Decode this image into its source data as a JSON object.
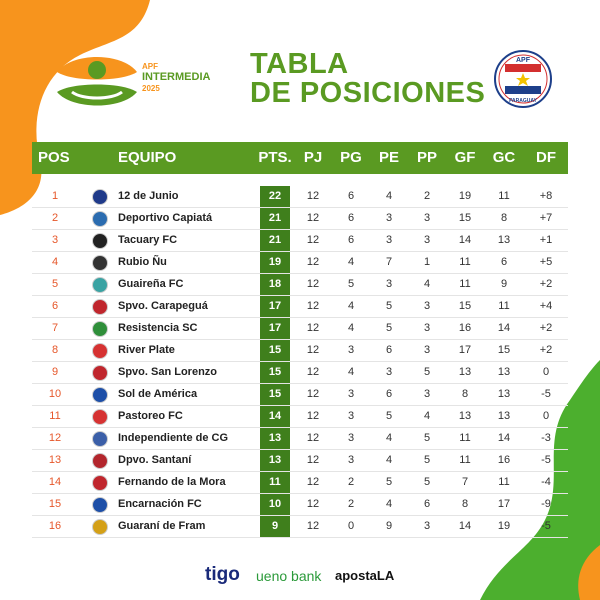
{
  "header": {
    "competition_line1": "APF",
    "competition_line2": "INTERMEDIA",
    "competition_year": "2025",
    "title_line1": "TABLA",
    "title_line2": "DE POSICIONES",
    "badge_top": "APF",
    "badge_bottom": "PARAGUAY"
  },
  "table": {
    "columns": [
      "POS",
      "EQUIPO",
      "PTS.",
      "PJ",
      "PG",
      "PE",
      "PP",
      "GF",
      "GC",
      "DF"
    ],
    "rows": [
      {
        "pos": "1",
        "team": "12 de Junio",
        "pts": "22",
        "pj": "12",
        "pg": "6",
        "pe": "4",
        "pp": "2",
        "gf": "19",
        "gc": "11",
        "df": "+8",
        "crest": "#1f3a8a"
      },
      {
        "pos": "2",
        "team": "Deportivo Capiatá",
        "pts": "21",
        "pj": "12",
        "pg": "6",
        "pe": "3",
        "pp": "3",
        "gf": "15",
        "gc": "8",
        "df": "+7",
        "crest": "#2b6cb0"
      },
      {
        "pos": "3",
        "team": "Tacuary FC",
        "pts": "21",
        "pj": "12",
        "pg": "6",
        "pe": "3",
        "pp": "3",
        "gf": "14",
        "gc": "13",
        "df": "+1",
        "crest": "#222222"
      },
      {
        "pos": "4",
        "team": "Rubio Ñu",
        "pts": "19",
        "pj": "12",
        "pg": "4",
        "pe": "7",
        "pp": "1",
        "gf": "11",
        "gc": "6",
        "df": "+5",
        "crest": "#333333"
      },
      {
        "pos": "5",
        "team": "Guaireña FC",
        "pts": "18",
        "pj": "12",
        "pg": "5",
        "pe": "3",
        "pp": "4",
        "gf": "11",
        "gc": "9",
        "df": "+2",
        "crest": "#3aa3a3"
      },
      {
        "pos": "6",
        "team": "Spvo. Carapeguá",
        "pts": "17",
        "pj": "12",
        "pg": "4",
        "pe": "5",
        "pp": "3",
        "gf": "15",
        "gc": "11",
        "df": "+4",
        "crest": "#c0262d"
      },
      {
        "pos": "7",
        "team": "Resistencia SC",
        "pts": "17",
        "pj": "12",
        "pg": "4",
        "pe": "5",
        "pp": "3",
        "gf": "16",
        "gc": "14",
        "df": "+2",
        "crest": "#2f8f3a"
      },
      {
        "pos": "8",
        "team": "River Plate",
        "pts": "15",
        "pj": "12",
        "pg": "3",
        "pe": "6",
        "pp": "3",
        "gf": "17",
        "gc": "15",
        "df": "+2",
        "crest": "#d63232"
      },
      {
        "pos": "9",
        "team": "Spvo. San Lorenzo",
        "pts": "15",
        "pj": "12",
        "pg": "4",
        "pe": "3",
        "pp": "5",
        "gf": "13",
        "gc": "13",
        "df": "0",
        "crest": "#c0262d"
      },
      {
        "pos": "10",
        "team": "Sol de América",
        "pts": "15",
        "pj": "12",
        "pg": "3",
        "pe": "6",
        "pp": "3",
        "gf": "8",
        "gc": "13",
        "df": "-5",
        "crest": "#1d4fa8"
      },
      {
        "pos": "11",
        "team": "Pastoreo FC",
        "pts": "14",
        "pj": "12",
        "pg": "3",
        "pe": "5",
        "pp": "4",
        "gf": "13",
        "gc": "13",
        "df": "0",
        "crest": "#d63232"
      },
      {
        "pos": "12",
        "team": "Independiente de CG",
        "pts": "13",
        "pj": "12",
        "pg": "3",
        "pe": "4",
        "pp": "5",
        "gf": "11",
        "gc": "14",
        "df": "-3",
        "crest": "#3b5fa8"
      },
      {
        "pos": "13",
        "team": "Dpvo. Santaní",
        "pts": "13",
        "pj": "12",
        "pg": "3",
        "pe": "4",
        "pp": "5",
        "gf": "11",
        "gc": "16",
        "df": "-5",
        "crest": "#b3262d"
      },
      {
        "pos": "14",
        "team": "Fernando de la Mora",
        "pts": "11",
        "pj": "12",
        "pg": "2",
        "pe": "5",
        "pp": "5",
        "gf": "7",
        "gc": "11",
        "df": "-4",
        "crest": "#c0262d"
      },
      {
        "pos": "15",
        "team": "Encarnación FC",
        "pts": "10",
        "pj": "12",
        "pg": "2",
        "pe": "4",
        "pp": "6",
        "gf": "8",
        "gc": "17",
        "df": "-9",
        "crest": "#1d4fa8"
      },
      {
        "pos": "16",
        "team": "Guaraní de Fram",
        "pts": "9",
        "pj": "12",
        "pg": "0",
        "pe": "9",
        "pp": "3",
        "gf": "14",
        "gc": "19",
        "df": "-5",
        "crest": "#d4a017"
      }
    ]
  },
  "sponsors": [
    "tigo",
    "ueno bank",
    "apostaLA"
  ],
  "colors": {
    "accent_green": "#5a9a22",
    "pts_green": "#3f7f1c",
    "pos_orange": "#e6572a",
    "blob_orange": "#f7941d",
    "blob_green": "#4caf2e"
  }
}
